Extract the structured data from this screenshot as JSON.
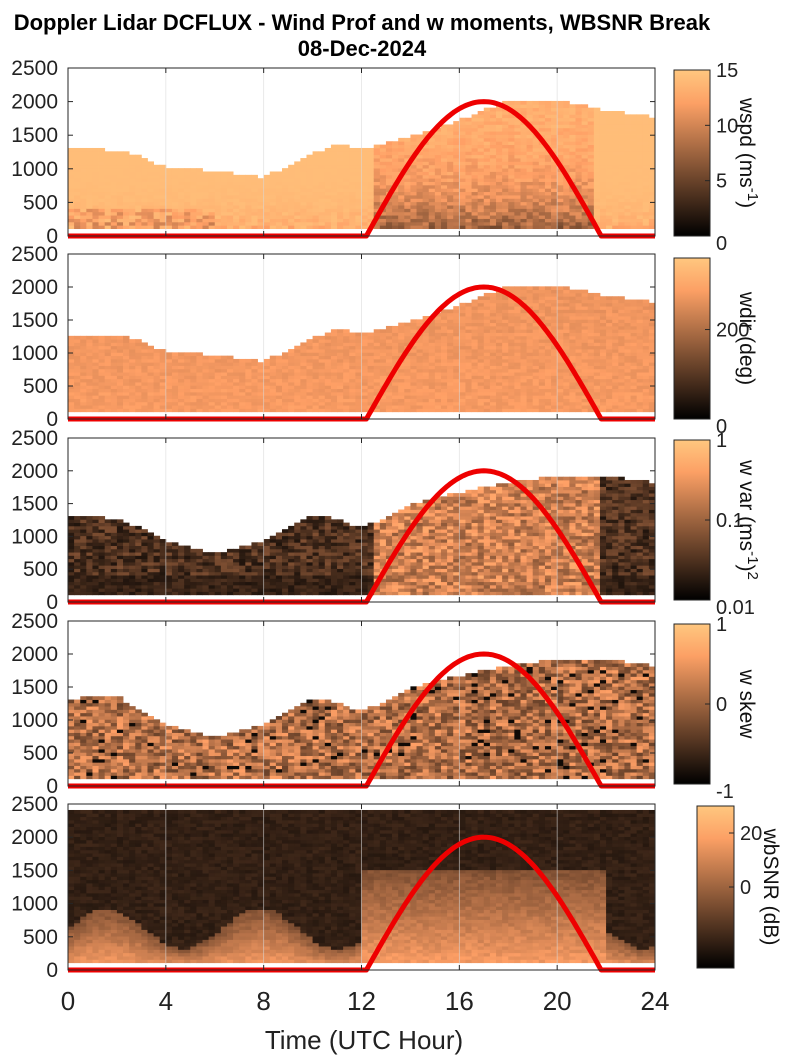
{
  "figure": {
    "title_line1": "Doppler Lidar DCFLUX - Wind Prof and w moments, WBSNR Break",
    "title_line2": "08-Dec-2024",
    "xlabel": "Time (UTC Hour)"
  },
  "chart_data": [
    {
      "type": "heatmap",
      "name": "wspd",
      "colorbar_label": "wspd (ms-1)",
      "colorbar_label_main": "wspd (ms",
      "colorbar_label_sup": "-1",
      "colorbar_label_end": ")",
      "colorbar_ticks": [
        "0",
        "5",
        "10",
        "15"
      ],
      "colorbar_tick_values": [
        0,
        5,
        10,
        15
      ],
      "clim": [
        0,
        15
      ],
      "xlim": [
        0,
        24
      ],
      "ylim": [
        0,
        2500
      ],
      "yticks": [
        "0",
        "500",
        "1000",
        "1500",
        "2000",
        "2500"
      ],
      "ytick_values": [
        0,
        500,
        1000,
        1500,
        2000,
        2500
      ],
      "top_height_profile": {
        "x": [
          0,
          2,
          3,
          4,
          6,
          8,
          10,
          11,
          12,
          14,
          16,
          18,
          20,
          22,
          24
        ],
        "y": [
          1300,
          1250,
          1150,
          1000,
          950,
          850,
          1200,
          1350,
          1250,
          1450,
          1700,
          2000,
          2000,
          1850,
          1750
        ]
      },
      "sun_curve": {
        "x": [
          0,
          12.2,
          17,
          21.8,
          24
        ],
        "y": [
          0,
          0,
          2000,
          0,
          0
        ],
        "color": "#ee0000"
      }
    },
    {
      "type": "heatmap",
      "name": "wdir",
      "colorbar_label": "wdir (deg)",
      "colorbar_ticks": [
        "0",
        "200"
      ],
      "colorbar_tick_values": [
        0,
        200
      ],
      "clim": [
        0,
        360
      ],
      "xlim": [
        0,
        24
      ],
      "ylim": [
        0,
        2500
      ],
      "yticks": [
        "0",
        "500",
        "1000",
        "1500",
        "2000",
        "2500"
      ],
      "ytick_values": [
        0,
        500,
        1000,
        1500,
        2000,
        2500
      ],
      "top_height_profile": {
        "x": [
          0,
          2,
          3,
          4,
          6,
          8,
          10,
          11,
          12,
          14,
          16,
          18,
          20,
          22,
          24
        ],
        "y": [
          1250,
          1250,
          1150,
          1000,
          950,
          850,
          1200,
          1350,
          1250,
          1450,
          1700,
          2000,
          2000,
          1850,
          1750
        ]
      },
      "sun_curve": {
        "x": [
          0,
          12.2,
          17,
          21.8,
          24
        ],
        "y": [
          0,
          0,
          2000,
          0,
          0
        ],
        "color": "#ee0000"
      }
    },
    {
      "type": "heatmap",
      "name": "w var",
      "colorbar_label": "w var (ms-1)2",
      "colorbar_label_main": "w var (ms",
      "colorbar_label_sup": "-1",
      "colorbar_label_end": ")",
      "colorbar_label_sup2": "2",
      "colorbar_ticks": [
        "0.01",
        "0.1",
        "1"
      ],
      "colorbar_tick_values": [
        0.01,
        0.1,
        1
      ],
      "clim": [
        0.01,
        1
      ],
      "scale": "log",
      "xlim": [
        0,
        24
      ],
      "ylim": [
        0,
        2500
      ],
      "yticks": [
        "0",
        "500",
        "1000",
        "1500",
        "2000",
        "2500"
      ],
      "ytick_values": [
        0,
        500,
        1000,
        1500,
        2000,
        2500
      ],
      "top_height_profile": {
        "x": [
          0,
          2,
          3,
          4,
          6,
          8,
          10,
          11,
          12,
          14,
          16,
          18,
          20,
          22,
          24
        ],
        "y": [
          1300,
          1250,
          1100,
          900,
          700,
          900,
          1300,
          1250,
          1100,
          1450,
          1650,
          1800,
          1900,
          1900,
          1800
        ]
      },
      "sun_curve": {
        "x": [
          0,
          12.2,
          17,
          21.8,
          24
        ],
        "y": [
          0,
          0,
          2000,
          0,
          0
        ],
        "color": "#ee0000"
      }
    },
    {
      "type": "heatmap",
      "name": "w skew",
      "colorbar_label": "w skew",
      "colorbar_ticks": [
        "-1",
        "0",
        "1"
      ],
      "colorbar_tick_values": [
        -1,
        0,
        1
      ],
      "clim": [
        -1,
        1
      ],
      "xlim": [
        0,
        24
      ],
      "ylim": [
        0,
        2500
      ],
      "yticks": [
        "0",
        "500",
        "1000",
        "1500",
        "2000",
        "2500"
      ],
      "ytick_values": [
        0,
        500,
        1000,
        1500,
        2000,
        2500
      ],
      "top_height_profile": {
        "x": [
          0,
          2,
          3,
          4,
          6,
          8,
          10,
          11,
          12,
          14,
          16,
          18,
          20,
          22,
          24
        ],
        "y": [
          1300,
          1350,
          1100,
          900,
          700,
          900,
          1300,
          1250,
          1100,
          1450,
          1650,
          1800,
          1900,
          1900,
          1800
        ]
      },
      "sun_curve": {
        "x": [
          0,
          12.2,
          17,
          21.8,
          24
        ],
        "y": [
          0,
          0,
          2000,
          0,
          0
        ],
        "color": "#ee0000"
      }
    },
    {
      "type": "heatmap",
      "name": "wbSNR",
      "colorbar_label": "wbSNR (dB)",
      "colorbar_ticks": [
        "0",
        "20"
      ],
      "colorbar_tick_values": [
        0,
        20
      ],
      "clim": [
        -30,
        30
      ],
      "xlim": [
        0,
        24
      ],
      "ylim": [
        0,
        2500
      ],
      "yticks": [
        "0",
        "500",
        "1000",
        "1500",
        "2000",
        "2500"
      ],
      "ytick_values": [
        0,
        500,
        1000,
        1500,
        2000,
        2500
      ],
      "xticks": [
        "0",
        "4",
        "8",
        "12",
        "16",
        "20",
        "24"
      ],
      "xtick_values": [
        0,
        4,
        8,
        12,
        16,
        20,
        24
      ],
      "top_height_profile": {
        "x": [
          0,
          24
        ],
        "y": [
          2500,
          2500
        ]
      },
      "sun_curve": {
        "x": [
          0,
          12.2,
          17,
          21.8,
          24
        ],
        "y": [
          0,
          0,
          2000,
          0,
          0
        ],
        "color": "#ee0000"
      }
    }
  ]
}
